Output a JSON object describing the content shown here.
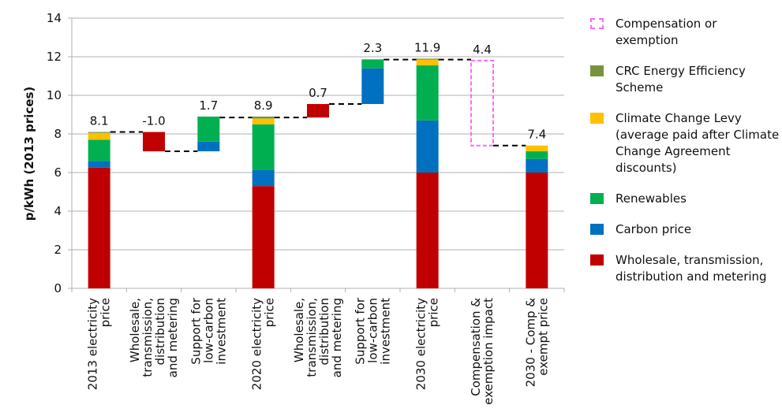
{
  "chart_data": {
    "type": "waterfall-stacked-bar",
    "title": "",
    "ylabel": "p/kWh (2013 prices)",
    "xlabel": "",
    "ylim": [
      0,
      14
    ],
    "yticks": [
      0,
      2,
      4,
      6,
      8,
      10,
      12,
      14
    ],
    "grid": true,
    "legend_position": "right",
    "categories": [
      "2013 electricity price",
      "Wholesale, transmission, distribution and metering",
      "Support for low-carbon investment",
      "2020 electricity price",
      "Wholesale, transmission, distribution and metering",
      "Support for low-carbon investment",
      "2030 electricity price",
      "Compensation & exemption impact",
      "2030 - Comp & exempt price"
    ],
    "category_label_lines": [
      [
        "2013 electricity",
        "price"
      ],
      [
        "Wholesale,",
        "transmission,",
        "distribution",
        "and metering"
      ],
      [
        "Support for",
        "low-carbon",
        "investment"
      ],
      [
        "2020 electricity",
        "price"
      ],
      [
        "Wholesale,",
        "transmission,",
        "distribution",
        "and metering"
      ],
      [
        "Support for",
        "low-carbon",
        "investment"
      ],
      [
        "2030 electricity",
        "price"
      ],
      [
        "Compensation &",
        "exemption impact"
      ],
      [
        "2030 - Comp &",
        "exempt price"
      ]
    ],
    "series_meta": [
      {
        "key": "wholesale",
        "name": "Wholesale, transmission, distribution and metering",
        "color": "#C00000"
      },
      {
        "key": "carbon",
        "name": "Carbon price",
        "color": "#0070C0"
      },
      {
        "key": "renewables",
        "name": "Renewables",
        "color": "#00B050"
      },
      {
        "key": "ccl",
        "name": "Climate Change Levy (average paid after Climate Change Agreement discounts)",
        "color": "#FFC000"
      },
      {
        "key": "crc",
        "name": "CRC Energy Efficiency Scheme",
        "color": "#77933C"
      }
    ],
    "bars": [
      {
        "base": 0,
        "segments": [
          6.25,
          0.35,
          1.1,
          0.35,
          0.05
        ],
        "label": "8.1",
        "total": 8.1
      },
      {
        "base": 7.1,
        "segments": [
          1.0,
          0,
          0,
          0,
          0
        ],
        "label": "-1.0",
        "total": -1.0
      },
      {
        "base": 7.1,
        "segments": [
          0,
          0.5,
          1.3,
          0,
          0
        ],
        "label": "1.7",
        "total": 1.7
      },
      {
        "base": 0,
        "segments": [
          5.3,
          0.85,
          2.35,
          0.3,
          0.1
        ],
        "label": "8.9",
        "total": 8.9
      },
      {
        "base": 8.85,
        "segments": [
          0.7,
          0,
          0,
          0,
          0
        ],
        "label": "0.7",
        "total": 0.7
      },
      {
        "base": 9.55,
        "segments": [
          0,
          1.85,
          0.45,
          0,
          0.02
        ],
        "label": "2.3",
        "total": 2.3
      },
      {
        "base": 0,
        "segments": [
          6.0,
          2.7,
          2.85,
          0.3,
          0.05
        ],
        "label": "11.9",
        "total": 11.9
      },
      {
        "base": 7.4,
        "segments": [],
        "compensation": 4.4,
        "label": "4.4",
        "total": -4.4
      },
      {
        "base": 0,
        "segments": [
          6.0,
          0.7,
          0.4,
          0.3,
          0
        ],
        "label": "7.4",
        "total": 7.4
      }
    ],
    "connectors": [
      {
        "from": 0,
        "to": 1,
        "y": 8.1
      },
      {
        "from": 1,
        "to": 2,
        "y": 7.1
      },
      {
        "from": 2,
        "to": 3,
        "y": 8.85
      },
      {
        "from": 3,
        "to": 4,
        "y": 8.85
      },
      {
        "from": 4,
        "to": 5,
        "y": 9.55
      },
      {
        "from": 5,
        "to": 6,
        "y": 11.85
      },
      {
        "from": 6,
        "to": 7,
        "y": 11.85
      },
      {
        "from": 7,
        "to": 8,
        "y": 7.4
      }
    ],
    "compensation_color": "#FF66FF"
  },
  "legend": [
    {
      "label": "Compensation or exemption",
      "color": "#FF66FF",
      "dashed": true
    },
    {
      "label": "CRC Energy Efficiency Scheme",
      "color": "#77933C"
    },
    {
      "label": "Climate Change Levy (average paid after Climate Change Agreement discounts)",
      "color": "#FFC000"
    },
    {
      "label": "Renewables",
      "color": "#00B050"
    },
    {
      "label": "Carbon price",
      "color": "#0070C0"
    },
    {
      "label": "Wholesale, transmission, distribution and metering",
      "color": "#C00000"
    }
  ]
}
